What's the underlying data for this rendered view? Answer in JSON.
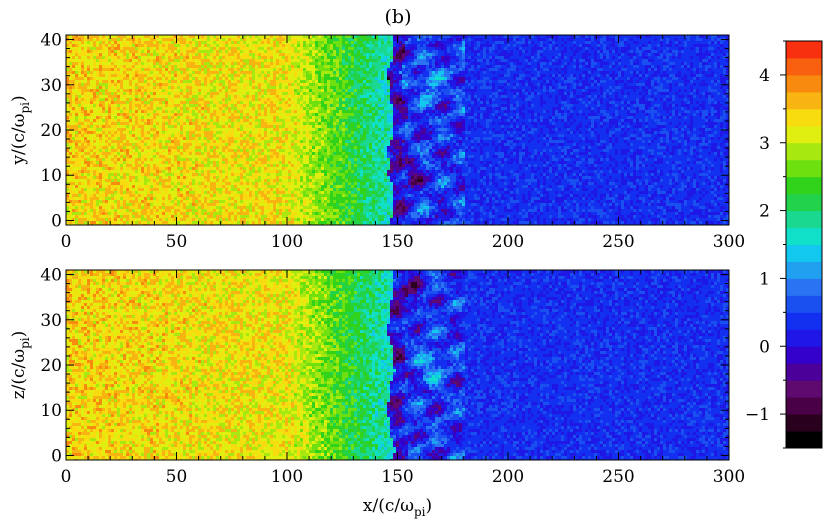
{
  "panel_tag": "(b)",
  "chart_data": [
    {
      "type": "heatmap",
      "title": "",
      "xlabel": "",
      "ylabel": "y/(c/ω_pi)",
      "ylabel_parts": {
        "main": "y/(c/ω",
        "sub": "pi",
        "end": ")"
      },
      "xlim": [
        0,
        300
      ],
      "ylim": [
        -1,
        41
      ],
      "x_ticks": [
        0,
        50,
        100,
        150,
        200,
        250,
        300
      ],
      "y_ticks": [
        0,
        10,
        20,
        30,
        40
      ],
      "field_description": {
        "upstream_value": 3.4,
        "upstream_x": [
          0,
          100
        ],
        "ramp_x": [
          100,
          147
        ],
        "shock_x": 147,
        "turbulent_x": [
          147,
          180
        ],
        "downstream_value": 0.35
      }
    },
    {
      "type": "heatmap",
      "title": "",
      "xlabel": "x/(c/ω_pi)",
      "xlabel_parts": {
        "main": "x/(c/ω",
        "sub": "pi",
        "end": ")"
      },
      "ylabel": "z/(c/ω_pi)",
      "ylabel_parts": {
        "main": "z/(c/ω",
        "sub": "pi",
        "end": ")"
      },
      "xlim": [
        0,
        300
      ],
      "ylim": [
        -1,
        41
      ],
      "x_ticks": [
        0,
        50,
        100,
        150,
        200,
        250,
        300
      ],
      "y_ticks": [
        0,
        10,
        20,
        30,
        40
      ],
      "field_description": {
        "upstream_value": 3.4,
        "upstream_x": [
          0,
          100
        ],
        "ramp_x": [
          100,
          147
        ],
        "shock_x": 147,
        "turbulent_x": [
          147,
          180
        ],
        "downstream_value": 0.35
      }
    }
  ],
  "colorbar": {
    "range": [
      -1.5,
      4.5
    ],
    "ticks": [
      -1,
      0,
      1,
      2,
      3,
      4
    ],
    "levels": 24,
    "colors": [
      "#000000",
      "#2a001f",
      "#4a0044",
      "#5e0a6e",
      "#4a0099",
      "#3300cc",
      "#1f17e6",
      "#1330f0",
      "#1a4ff0",
      "#2a73f2",
      "#22a0f0",
      "#12c8ee",
      "#10e0c8",
      "#1ad890",
      "#22d24a",
      "#30d21a",
      "#6ee010",
      "#a6e810",
      "#e0ee10",
      "#f8dc10",
      "#f8b410",
      "#f88a10",
      "#f86010",
      "#f83010"
    ]
  }
}
